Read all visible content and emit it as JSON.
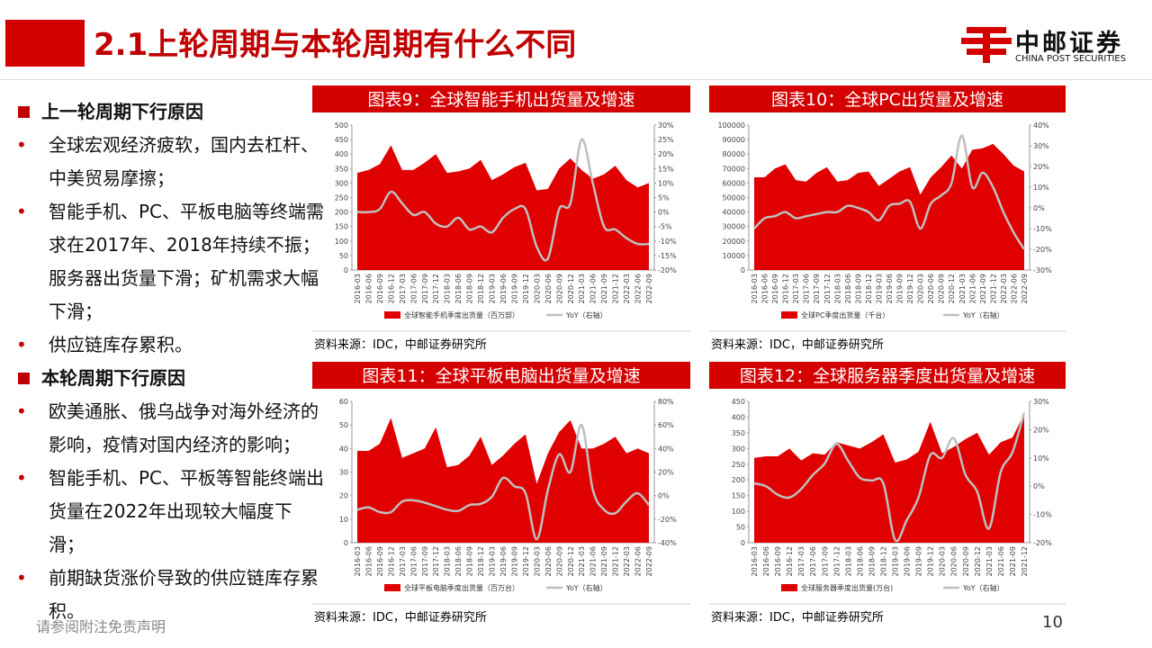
{
  "header": {
    "title": "2.1上轮周期与本轮周期有什么不同",
    "logo": "中邮证券",
    "logo_en": "CHINA POST SECURITIES"
  },
  "sections": [
    {
      "heading": "上一轮周期下行原因",
      "items": [
        "全球宏观经济疲软，国内去杠杆、中美贸易摩擦；",
        "智能手机、PC、平板电脑等终端需求在2017年、2018年持续不振；服务器出货量下滑；矿机需求大幅下滑；",
        "供应链库存累积。"
      ]
    },
    {
      "heading": "本轮周期下行原因",
      "items": [
        "欧美通胀、俄乌战争对海外经济的影响，疫情对国内经济的影响；",
        "智能手机、PC、平板等智能终端出货量在2022年出现较大幅度下滑；",
        "前期缺货涨价导致的供应链库存累积。"
      ]
    }
  ],
  "footer": {
    "disclaimer": "请参阅附注免责声明",
    "page": "10"
  },
  "chart_data": [
    {
      "type": "area",
      "title": "图表9：全球智能手机出货量及增速",
      "source": "资料来源：IDC，中邮证券研究所",
      "categories": [
        "2016-03",
        "2016-06",
        "2016-09",
        "2016-12",
        "2017-03",
        "2017-06",
        "2017-09",
        "2017-12",
        "2018-03",
        "2018-06",
        "2018-09",
        "2018-12",
        "2019-03",
        "2019-06",
        "2019-09",
        "2019-12",
        "2020-03",
        "2020-06",
        "2020-09",
        "2020-12",
        "2021-03",
        "2021-06",
        "2021-09",
        "2021-12",
        "2022-03",
        "2022-06",
        "2022-09"
      ],
      "series": [
        {
          "name": "全球智能手机季度出货量（百万部）",
          "color": "#e00000",
          "values": [
            335,
            345,
            365,
            430,
            345,
            345,
            370,
            400,
            335,
            340,
            350,
            380,
            310,
            330,
            355,
            370,
            275,
            280,
            350,
            385,
            345,
            315,
            330,
            360,
            310,
            285,
            300
          ]
        },
        {
          "name": "YoY（右轴）",
          "color": "#bfbfbf",
          "axis": "y2",
          "values": [
            0,
            0,
            1,
            7,
            3,
            -1,
            0,
            -4,
            -5,
            -2,
            -6,
            -5,
            -7,
            -2,
            1,
            1,
            -12,
            -16,
            1,
            3,
            25,
            10,
            -5,
            -6,
            -9,
            -11,
            -11
          ]
        }
      ],
      "ylim": [
        0,
        500
      ],
      "yticks": [
        0,
        50,
        100,
        150,
        200,
        250,
        300,
        350,
        400,
        450,
        500
      ],
      "y2lim": [
        -20,
        30
      ],
      "y2ticks": [
        {
          "value": -20,
          "label": "-20%"
        },
        {
          "value": -15,
          "label": "-15%"
        },
        {
          "value": -10,
          "label": "-10%"
        },
        {
          "value": -5,
          "label": "-5%"
        },
        {
          "value": 0,
          "label": "0%"
        },
        {
          "value": 5,
          "label": "5%"
        },
        {
          "value": 10,
          "label": "10%"
        },
        {
          "value": 15,
          "label": "15%"
        },
        {
          "value": 20,
          "label": "20%"
        },
        {
          "value": 25,
          "label": "25%"
        },
        {
          "value": 30,
          "label": "30%"
        }
      ]
    },
    {
      "type": "area",
      "title": "图表10：全球PC出货量及增速",
      "source": "资料来源：IDC，中邮证券研究所",
      "categories": [
        "2016-03",
        "2016-06",
        "2016-09",
        "2016-12",
        "2017-03",
        "2017-06",
        "2017-09",
        "2017-12",
        "2018-03",
        "2018-06",
        "2018-09",
        "2018-12",
        "2019-03",
        "2019-06",
        "2019-09",
        "2019-12",
        "2020-03",
        "2020-06",
        "2020-09",
        "2020-12",
        "2021-03",
        "2021-06",
        "2021-09",
        "2021-12",
        "2022-03",
        "2022-06",
        "2022-09"
      ],
      "series": [
        {
          "name": "全球PC季度出货量（千台）",
          "color": "#e00000",
          "values": [
            64000,
            64000,
            70000,
            73000,
            62000,
            61000,
            67000,
            71000,
            61000,
            62000,
            67000,
            68000,
            58000,
            63000,
            68000,
            71000,
            52000,
            64000,
            71000,
            79000,
            70000,
            83000,
            84000,
            87000,
            80000,
            72000,
            68000
          ]
        },
        {
          "name": "YoY（右轴）",
          "color": "#bfbfbf",
          "axis": "y2",
          "values": [
            -10,
            -5,
            -4,
            -2,
            -5,
            -4,
            -3,
            -2,
            -2,
            1,
            0,
            -2,
            -6,
            1,
            2,
            3,
            -10,
            2,
            6,
            12,
            35,
            10,
            17,
            10,
            -2,
            -12,
            -20
          ]
        }
      ],
      "ylim": [
        0,
        100000
      ],
      "yticks": [
        0,
        10000,
        20000,
        30000,
        40000,
        50000,
        60000,
        70000,
        80000,
        90000,
        100000
      ],
      "y2lim": [
        -30,
        40
      ],
      "y2ticks": [
        {
          "value": -30,
          "label": "-30%"
        },
        {
          "value": -20,
          "label": "-20%"
        },
        {
          "value": -10,
          "label": "-10%"
        },
        {
          "value": 0,
          "label": "0%"
        },
        {
          "value": 10,
          "label": "10%"
        },
        {
          "value": 20,
          "label": "20%"
        },
        {
          "value": 30,
          "label": "30%"
        },
        {
          "value": 40,
          "label": "40%"
        }
      ]
    },
    {
      "type": "area",
      "title": "图表11：全球平板电脑出货量及增速",
      "source": "资料来源：IDC，中邮证券研究所",
      "categories": [
        "2016-03",
        "2016-06",
        "2016-09",
        "2016-12",
        "2017-03",
        "2017-06",
        "2017-09",
        "2017-12",
        "2018-03",
        "2018-06",
        "2018-09",
        "2018-12",
        "2019-03",
        "2019-06",
        "2019-09",
        "2019-12",
        "2020-03",
        "2020-06",
        "2020-09",
        "2020-12",
        "2021-03",
        "2021-06",
        "2021-09",
        "2021-12",
        "2022-03",
        "2022-06",
        "2022-09"
      ],
      "series": [
        {
          "name": "全球平板电脑季度出货量（百万台）",
          "color": "#e00000",
          "values": [
            39,
            39,
            42,
            53,
            36,
            38,
            40,
            49,
            32,
            33,
            37,
            45,
            33,
            37,
            42,
            46,
            25,
            38,
            47,
            52,
            40,
            40,
            42,
            45,
            38,
            40,
            38
          ]
        },
        {
          "name": "YoY（右轴）",
          "color": "#bfbfbf",
          "axis": "y2",
          "values": [
            -12,
            -10,
            -14,
            -14,
            -5,
            -4,
            -6,
            -9,
            -12,
            -13,
            -8,
            -7,
            -1,
            15,
            8,
            2,
            -37,
            5,
            35,
            20,
            60,
            5,
            -12,
            -15,
            -5,
            2,
            -8
          ]
        }
      ],
      "ylim": [
        0,
        60
      ],
      "yticks": [
        0,
        10,
        20,
        30,
        40,
        50,
        60
      ],
      "y2lim": [
        -40,
        80
      ],
      "y2ticks": [
        {
          "value": -40,
          "label": "-40%"
        },
        {
          "value": -20,
          "label": "-20%"
        },
        {
          "value": 0,
          "label": "0%"
        },
        {
          "value": 20,
          "label": "20%"
        },
        {
          "value": 40,
          "label": "40%"
        },
        {
          "value": 60,
          "label": "60%"
        },
        {
          "value": 80,
          "label": "80%"
        }
      ]
    },
    {
      "type": "area",
      "title": "图表12：全球服务器季度出货量及增速",
      "source": "资料来源：IDC，中邮证券研究所",
      "categories": [
        "2016-03",
        "2016-06",
        "2016-09",
        "2016-12",
        "2017-03",
        "2017-06",
        "2017-09",
        "2017-12",
        "2018-03",
        "2018-06",
        "2018-09",
        "2018-12",
        "2019-03",
        "2019-06",
        "2019-09",
        "2019-12",
        "2020-03",
        "2020-06",
        "2020-09",
        "2020-12",
        "2021-03",
        "2021-06",
        "2021-09",
        "2021-12"
      ],
      "series": [
        {
          "name": "全球服务器季度出货量(万台)",
          "color": "#e00000",
          "values": [
            270,
            275,
            275,
            300,
            262,
            285,
            280,
            320,
            310,
            300,
            320,
            345,
            255,
            265,
            290,
            385,
            285,
            305,
            330,
            350,
            280,
            320,
            335,
            410
          ]
        },
        {
          "name": "YoY（右轴）",
          "color": "#bfbfbf",
          "axis": "y2",
          "values": [
            1,
            0,
            -3,
            -4,
            -1,
            4,
            8,
            15,
            9,
            3,
            2,
            1,
            -19,
            -12,
            -4,
            11,
            10,
            17,
            4,
            -2,
            -15,
            5,
            12,
            26
          ]
        }
      ],
      "ylim": [
        0,
        450
      ],
      "yticks": [
        0,
        50,
        100,
        150,
        200,
        250,
        300,
        350,
        400,
        450
      ],
      "y2lim": [
        -20,
        30
      ],
      "y2ticks": [
        {
          "value": -20,
          "label": "-20%"
        },
        {
          "value": -10,
          "label": "-10%"
        },
        {
          "value": 0,
          "label": "0%"
        },
        {
          "value": 10,
          "label": "10%"
        },
        {
          "value": 20,
          "label": "20%"
        },
        {
          "value": 30,
          "label": "30%"
        }
      ]
    }
  ]
}
